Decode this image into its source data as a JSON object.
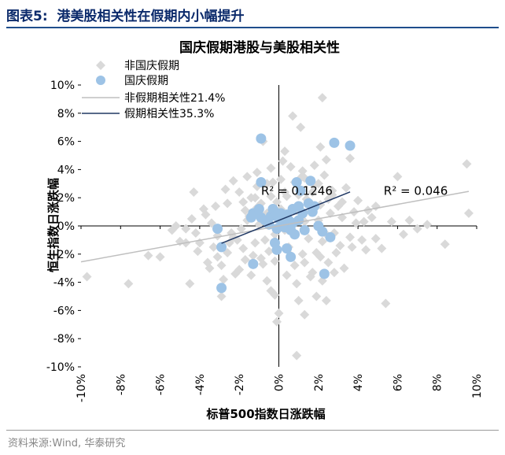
{
  "header": {
    "title": "图表5:  港美股相关性在假期内小幅提升"
  },
  "footer": {
    "source": "资料来源:Wind, 华泰研究"
  },
  "chart_data": {
    "type": "scatter",
    "title": "国庆假期港股与美股相关性",
    "xlabel": "标普500指数日涨跌幅",
    "ylabel": "恒生指数日涨跌幅",
    "xlim": [
      -0.1,
      0.1
    ],
    "ylim": [
      -0.1,
      0.1
    ],
    "xticks": [
      -0.1,
      -0.08,
      -0.06,
      -0.04,
      -0.02,
      0.0,
      0.02,
      0.04,
      0.06,
      0.08,
      0.1
    ],
    "yticks": [
      0.1,
      0.08,
      0.06,
      0.04,
      0.02,
      0.0,
      -0.02,
      -0.04,
      -0.06,
      -0.08,
      -0.1
    ],
    "xtick_labels": [
      "-10%",
      "-8%",
      "-6%",
      "-4%",
      "-2%",
      "0%",
      "2%",
      "4%",
      "6%",
      "8%",
      "10%"
    ],
    "ytick_labels": [
      "10%",
      "8%",
      "6%",
      "4%",
      "2%",
      "0%",
      "-2%",
      "-4%",
      "-6%",
      "-8%",
      "-10%"
    ],
    "grid": false,
    "legend_position": "top-left",
    "series": [
      {
        "name": "非国庆假期",
        "marker": "diamond",
        "color": "#d9d9d9",
        "points": [
          [
            -0.097,
            -0.036
          ],
          [
            -0.076,
            -0.041
          ],
          [
            -0.066,
            -0.021
          ],
          [
            -0.06,
            -0.022
          ],
          [
            -0.054,
            -0.003
          ],
          [
            -0.05,
            -0.011
          ],
          [
            -0.047,
            -0.012
          ],
          [
            -0.045,
            -0.041
          ],
          [
            -0.047,
            -0.002
          ],
          [
            -0.044,
            0.005
          ],
          [
            -0.042,
            -0.005
          ],
          [
            -0.04,
            -0.012
          ],
          [
            -0.037,
            0.008
          ],
          [
            -0.035,
            -0.03
          ],
          [
            -0.034,
            0.002
          ],
          [
            -0.033,
            -0.015
          ],
          [
            -0.031,
            -0.022
          ],
          [
            -0.029,
            -0.05
          ],
          [
            -0.028,
            -0.038
          ],
          [
            -0.026,
            -0.019
          ],
          [
            -0.024,
            -0.005
          ],
          [
            -0.023,
            -0.008
          ],
          [
            -0.021,
            -0.01
          ],
          [
            -0.02,
            -0.031
          ],
          [
            -0.019,
            -0.002
          ],
          [
            -0.018,
            -0.016
          ],
          [
            -0.017,
            0.011
          ],
          [
            -0.016,
            0.004
          ],
          [
            -0.015,
            0.007
          ],
          [
            -0.014,
            0.02
          ],
          [
            -0.013,
            -0.021
          ],
          [
            -0.012,
            -0.012
          ],
          [
            -0.011,
            0.013
          ],
          [
            -0.01,
            0.001
          ],
          [
            -0.009,
            0.016
          ],
          [
            -0.008,
            -0.027
          ],
          [
            -0.007,
            -0.01
          ],
          [
            -0.006,
            0.009
          ],
          [
            -0.005,
            -0.018
          ],
          [
            -0.004,
            -0.046
          ],
          [
            -0.003,
            0.031
          ],
          [
            -0.002,
            -0.006
          ],
          [
            -0.001,
            0.017
          ],
          [
            0.0,
            -0.062
          ],
          [
            0.001,
            0.012
          ],
          [
            0.002,
            0.046
          ],
          [
            0.003,
            -0.003
          ],
          [
            0.004,
            0.021
          ],
          [
            0.005,
            -0.015
          ],
          [
            0.006,
            0.001
          ],
          [
            0.007,
            0.078
          ],
          [
            0.008,
            -0.028
          ],
          [
            0.009,
            0.011
          ],
          [
            0.01,
            -0.053
          ],
          [
            0.011,
            0.034
          ],
          [
            0.012,
            -0.02
          ],
          [
            0.013,
            0.003
          ],
          [
            0.014,
            0.019
          ],
          [
            0.015,
            -0.009
          ],
          [
            0.016,
            0.01
          ],
          [
            0.017,
            -0.033
          ],
          [
            0.018,
            0.029
          ],
          [
            0.019,
            -0.019
          ],
          [
            0.02,
            0.004
          ],
          [
            0.021,
            0.015
          ],
          [
            0.022,
            -0.011
          ],
          [
            0.023,
            0.036
          ],
          [
            0.024,
            -0.006
          ],
          [
            0.025,
            -0.026
          ],
          [
            0.026,
            0.009
          ],
          [
            0.027,
            0.022
          ],
          [
            0.028,
            -0.005
          ],
          [
            0.03,
            0.014
          ],
          [
            0.031,
            -0.014
          ],
          [
            0.032,
            0.006
          ],
          [
            0.033,
            -0.03
          ],
          [
            0.034,
            0.027
          ],
          [
            0.036,
            0.048
          ],
          [
            0.037,
            -0.015
          ],
          [
            0.039,
            0.002
          ],
          [
            0.04,
            0.018
          ],
          [
            0.042,
            -0.01
          ],
          [
            0.045,
            0.011
          ],
          [
            0.047,
            0.006
          ],
          [
            0.049,
            -0.009
          ],
          [
            0.052,
            -0.016
          ],
          [
            0.054,
            -0.055
          ],
          [
            0.057,
            0.003
          ],
          [
            0.06,
            0.035
          ],
          [
            0.063,
            -0.006
          ],
          [
            0.066,
            0.004
          ],
          [
            0.07,
            -0.002
          ],
          [
            0.075,
            0.001
          ],
          [
            0.084,
            -0.013
          ],
          [
            0.095,
            0.044
          ],
          [
            0.096,
            0.009
          ],
          [
            -0.023,
            0.032
          ],
          [
            -0.016,
            0.035
          ],
          [
            -0.011,
            0.038
          ],
          [
            -0.004,
            0.041
          ],
          [
            0.003,
            0.053
          ],
          [
            0.006,
            0.042
          ],
          [
            0.012,
            0.039
          ],
          [
            0.018,
            0.043
          ],
          [
            0.021,
            0.056
          ],
          [
            0.024,
            0.047
          ],
          [
            0.022,
            0.091
          ],
          [
            -0.027,
            0.026
          ],
          [
            -0.02,
            0.024
          ],
          [
            -0.011,
            0.028
          ],
          [
            -0.006,
            0.03
          ],
          [
            0.001,
            0.033
          ],
          [
            0.008,
            0.031
          ],
          [
            0.013,
            0.034
          ],
          [
            0.02,
            0.03
          ],
          [
            0.027,
            0.025
          ],
          [
            -0.036,
            -0.026
          ],
          [
            -0.029,
            -0.028
          ],
          [
            -0.022,
            -0.034
          ],
          [
            -0.014,
            -0.035
          ],
          [
            -0.006,
            -0.039
          ],
          [
            0.004,
            -0.035
          ],
          [
            0.009,
            -0.041
          ],
          [
            0.016,
            -0.036
          ],
          [
            0.022,
            -0.039
          ],
          [
            0.028,
            -0.033
          ],
          [
            -0.038,
            0.012
          ],
          [
            -0.032,
            0.014
          ],
          [
            -0.026,
            0.016
          ],
          [
            -0.018,
            0.017
          ],
          [
            -0.012,
            0.02
          ],
          [
            -0.004,
            0.021
          ],
          [
            0.003,
            0.024
          ],
          [
            0.01,
            0.022
          ],
          [
            0.017,
            0.024
          ],
          [
            0.025,
            0.019
          ],
          [
            0.032,
            0.017
          ],
          [
            0.038,
            0.01
          ],
          [
            -0.031,
            -0.007
          ],
          [
            -0.025,
            -0.012
          ],
          [
            -0.017,
            -0.024
          ],
          [
            -0.009,
            -0.023
          ],
          [
            -0.002,
            -0.025
          ],
          [
            0.006,
            -0.021
          ],
          [
            0.013,
            -0.026
          ],
          [
            0.021,
            -0.022
          ],
          [
            0.029,
            -0.019
          ],
          [
            0.036,
            -0.008
          ],
          [
            0.043,
            0.003
          ],
          [
            -0.043,
            0.024
          ],
          [
            -0.052,
            0.0
          ],
          [
            -0.041,
            -0.018
          ],
          [
            0.044,
            -0.017
          ],
          [
            0.049,
            0.014
          ],
          [
            -0.001,
            -0.068
          ],
          [
            0.009,
            -0.092
          ],
          [
            0.013,
            -0.063
          ],
          [
            0.019,
            -0.05
          ],
          [
            0.024,
            -0.053
          ],
          [
            -0.008,
            0.06
          ],
          [
            -0.002,
            -0.049
          ],
          [
            0.011,
            0.07
          ]
        ]
      },
      {
        "name": "国庆假期",
        "marker": "circle",
        "color": "#9dc3e6",
        "points": [
          [
            -0.029,
            -0.044
          ],
          [
            -0.029,
            -0.015
          ],
          [
            -0.031,
            -0.002
          ],
          [
            -0.013,
            -0.027
          ],
          [
            -0.014,
            0.006
          ],
          [
            -0.013,
            0.009
          ],
          [
            -0.01,
            0.012
          ],
          [
            -0.009,
            0.031
          ],
          [
            -0.009,
            0.006
          ],
          [
            -0.007,
            0.004
          ],
          [
            -0.005,
            0.001
          ],
          [
            -0.004,
            0.007
          ],
          [
            -0.003,
            0.012
          ],
          [
            -0.002,
            0.01
          ],
          [
            -0.001,
            -0.002
          ],
          [
            0.0,
            0.005
          ],
          [
            0.001,
            0.009
          ],
          [
            0.002,
            0.003
          ],
          [
            0.003,
            -0.001
          ],
          [
            0.004,
            0.008
          ],
          [
            0.004,
            -0.016
          ],
          [
            0.006,
            -0.022
          ],
          [
            0.007,
            0.012
          ],
          [
            0.007,
            0.002
          ],
          [
            0.008,
            -0.006
          ],
          [
            0.009,
            0.031
          ],
          [
            0.01,
            0.014
          ],
          [
            0.011,
            0.025
          ],
          [
            0.012,
            0.009
          ],
          [
            0.013,
            -0.003
          ],
          [
            0.015,
            0.016
          ],
          [
            0.016,
            0.032
          ],
          [
            0.017,
            0.01
          ],
          [
            0.018,
            0.014
          ],
          [
            0.02,
            0.0
          ],
          [
            0.022,
            -0.004
          ],
          [
            0.023,
            -0.034
          ],
          [
            0.026,
            -0.008
          ],
          [
            0.028,
            0.059
          ],
          [
            0.036,
            0.057
          ],
          [
            -0.009,
            0.062
          ],
          [
            -0.001,
            0.008
          ],
          [
            -0.002,
            -0.012
          ],
          [
            -0.001,
            -0.017
          ],
          [
            0.002,
            0.0
          ],
          [
            0.005,
            0.004
          ],
          [
            0.006,
            -0.003
          ],
          [
            0.01,
            0.004
          ]
        ]
      }
    ],
    "trendlines": [
      {
        "name": "非假期相关性21.4%",
        "color": "#bfbfbf",
        "x": [
          -0.1,
          0.096
        ],
        "y": [
          -0.0255,
          0.0245
        ]
      },
      {
        "name": "假期相关性35.3%",
        "color": "#203864",
        "x": [
          -0.029,
          0.036
        ],
        "y": [
          -0.0123,
          0.0241
        ]
      }
    ],
    "annotations": [
      {
        "text": "R² = 0.1246",
        "x": -0.009,
        "y": 0.022
      },
      {
        "text": "R² = 0.046",
        "x": 0.053,
        "y": 0.022
      }
    ]
  }
}
